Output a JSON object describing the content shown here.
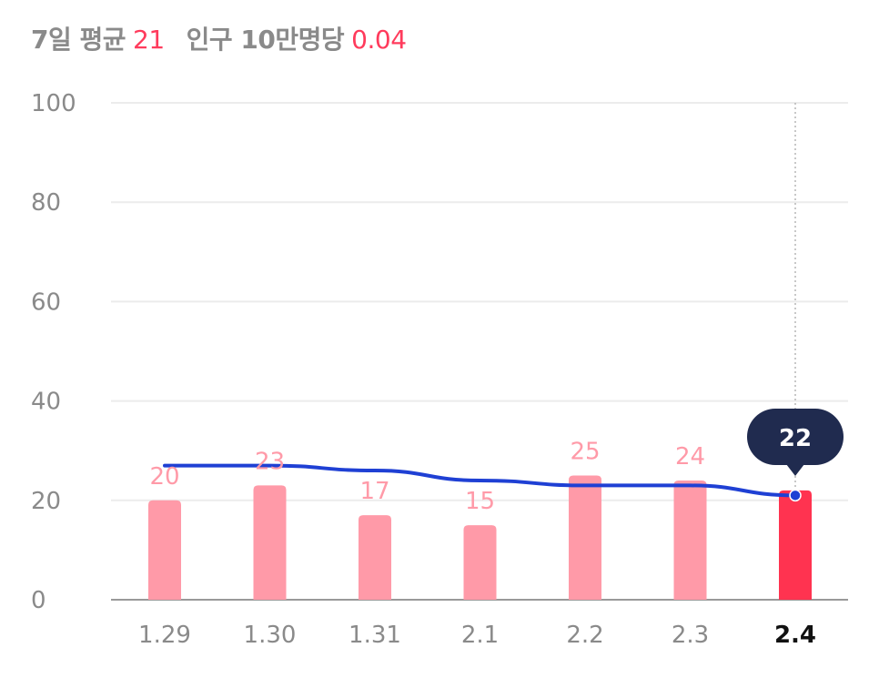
{
  "summary": {
    "avg_label": "7일 평균",
    "avg_value": "21",
    "per_label": "인구 10만명당",
    "per_value": "0.04"
  },
  "colors": {
    "bar": "#ff9aa8",
    "bar_highlight": "#ff3350",
    "line": "#1f40d4",
    "tooltip_bg": "#202b4f",
    "grid": "#ececec",
    "axis": "#999999"
  },
  "chart_data": {
    "type": "bar",
    "categories": [
      "1.29",
      "1.30",
      "1.31",
      "2.1",
      "2.2",
      "2.3",
      "2.4"
    ],
    "values": [
      20,
      23,
      17,
      15,
      25,
      24,
      22
    ],
    "series": [
      {
        "type": "bar",
        "values": [
          20,
          23,
          17,
          15,
          25,
          24,
          22
        ]
      },
      {
        "type": "line",
        "values": [
          27,
          27,
          26,
          24,
          23,
          23,
          21
        ]
      }
    ],
    "ylim": [
      0,
      100
    ],
    "yticks": [
      0,
      20,
      40,
      60,
      80,
      100
    ],
    "highlight_index": 6,
    "tooltip_value": "22",
    "grid": true
  }
}
